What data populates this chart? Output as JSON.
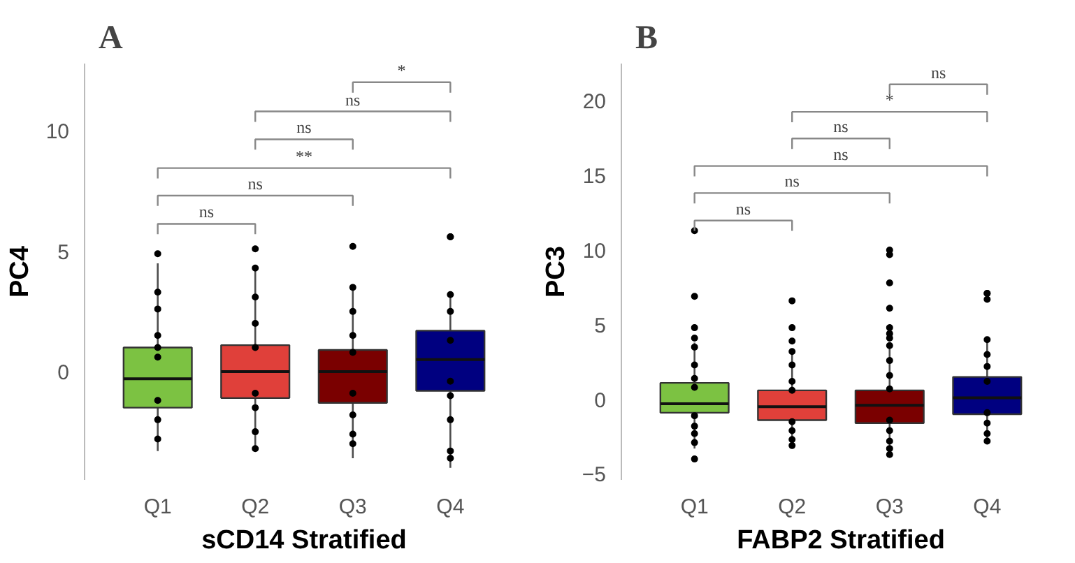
{
  "chart_data": [
    {
      "type": "box",
      "title": "A",
      "xlabel": "sCD14 Stratified",
      "ylabel": "PC4",
      "categories": [
        "Q1",
        "Q2",
        "Q3",
        "Q4"
      ],
      "colors": [
        "#7cc242",
        "#e0403a",
        "#7a0000",
        "#000080"
      ],
      "boxes": [
        {
          "low": -3.3,
          "q1": -1.5,
          "median": -0.3,
          "q3": 1.0,
          "high": 4.5,
          "outliers": [
            4.9
          ]
        },
        {
          "low": -3.3,
          "q1": -1.1,
          "median": 0.0,
          "q3": 1.1,
          "high": 4.4,
          "outliers": [
            5.1
          ]
        },
        {
          "low": -3.6,
          "q1": -1.3,
          "median": 0.0,
          "q3": 0.9,
          "high": 3.4,
          "outliers": [
            5.2
          ]
        },
        {
          "low": -4.0,
          "q1": -0.8,
          "median": 0.5,
          "q3": 1.7,
          "high": 3.2,
          "outliers": [
            5.6,
            5.6
          ]
        }
      ],
      "series": [
        {
          "type": "scatter",
          "color": "#000000",
          "x": [
            "Q1",
            "Q1",
            "Q1",
            "Q1",
            "Q1",
            "Q1",
            "Q1",
            "Q1",
            "Q2",
            "Q2",
            "Q2",
            "Q2",
            "Q2",
            "Q2",
            "Q2",
            "Q2",
            "Q3",
            "Q3",
            "Q3",
            "Q3",
            "Q3",
            "Q3",
            "Q3",
            "Q3",
            "Q4",
            "Q4",
            "Q4",
            "Q4",
            "Q4",
            "Q4",
            "Q4",
            "Q4"
          ],
          "values": [
            3.3,
            2.6,
            1.5,
            0.6,
            1.0,
            -1.2,
            -2.0,
            -2.8,
            4.3,
            3.1,
            2.0,
            1.0,
            -0.9,
            -1.5,
            -2.5,
            -3.2,
            3.5,
            2.5,
            1.5,
            0.8,
            -0.9,
            -1.8,
            -2.6,
            -3.0,
            3.2,
            2.5,
            1.3,
            -0.4,
            -1.0,
            -2.0,
            -3.3,
            -3.6
          ]
        }
      ],
      "annotations": [
        "*",
        "ns",
        "ns",
        "**",
        "ns",
        "ns"
      ],
      "ylim": [
        -4.5,
        12.8
      ],
      "yticks": [
        0,
        5,
        10
      ],
      "grid": false
    },
    {
      "type": "box",
      "title": "B",
      "xlabel": "FABP2 Stratified",
      "ylabel": "PC3",
      "categories": [
        "Q1",
        "Q2",
        "Q3",
        "Q4"
      ],
      "colors": [
        "#7cc242",
        "#e0403a",
        "#7a0000",
        "#000080"
      ],
      "boxes": [
        {
          "low": -3.3,
          "q1": -0.9,
          "median": -0.3,
          "q3": 1.1,
          "high": 3.8,
          "outliers": [
            11.3,
            6.9,
            4.8,
            4.1,
            -4.0
          ]
        },
        {
          "low": -3.3,
          "q1": -1.4,
          "median": -0.5,
          "q3": 0.6,
          "high": 3.4,
          "outliers": [
            6.6,
            4.8,
            3.9
          ]
        },
        {
          "low": -3.6,
          "q1": -1.6,
          "median": -0.4,
          "q3": 0.6,
          "high": 3.8,
          "outliers": [
            10.0,
            9.7,
            7.8,
            6.1,
            4.8,
            4.4,
            4.1,
            -3.7
          ]
        },
        {
          "low": -3.0,
          "q1": -1.0,
          "median": 0.1,
          "q3": 1.5,
          "high": 4.1,
          "outliers": [
            7.1,
            7.1,
            6.7
          ]
        }
      ],
      "series": [
        {
          "type": "scatter",
          "color": "#000000",
          "x": [
            "Q1",
            "Q1",
            "Q1",
            "Q1",
            "Q1",
            "Q1",
            "Q1",
            "Q1",
            "Q2",
            "Q2",
            "Q2",
            "Q2",
            "Q2",
            "Q2",
            "Q2",
            "Q2",
            "Q3",
            "Q3",
            "Q3",
            "Q3",
            "Q3",
            "Q3",
            "Q3",
            "Q3",
            "Q4",
            "Q4",
            "Q4",
            "Q4",
            "Q4",
            "Q4",
            "Q4",
            "Q4"
          ],
          "values": [
            3.5,
            2.3,
            1.4,
            0.8,
            -1.1,
            -1.8,
            -2.3,
            -2.9,
            3.2,
            2.3,
            1.2,
            0.6,
            -1.5,
            -2.1,
            -2.7,
            -3.1,
            3.6,
            2.6,
            1.6,
            0.7,
            -1.4,
            -2.1,
            -2.8,
            -3.3,
            4.0,
            3.0,
            2.2,
            1.2,
            -0.9,
            -1.6,
            -2.3,
            -2.8
          ]
        }
      ],
      "annotations": [
        "ns",
        "*",
        "ns",
        "ns",
        "ns",
        "ns"
      ],
      "ylim": [
        -5.4,
        22.5
      ],
      "yticks": [
        -5,
        0,
        5,
        10,
        15,
        20
      ],
      "grid": false
    }
  ]
}
